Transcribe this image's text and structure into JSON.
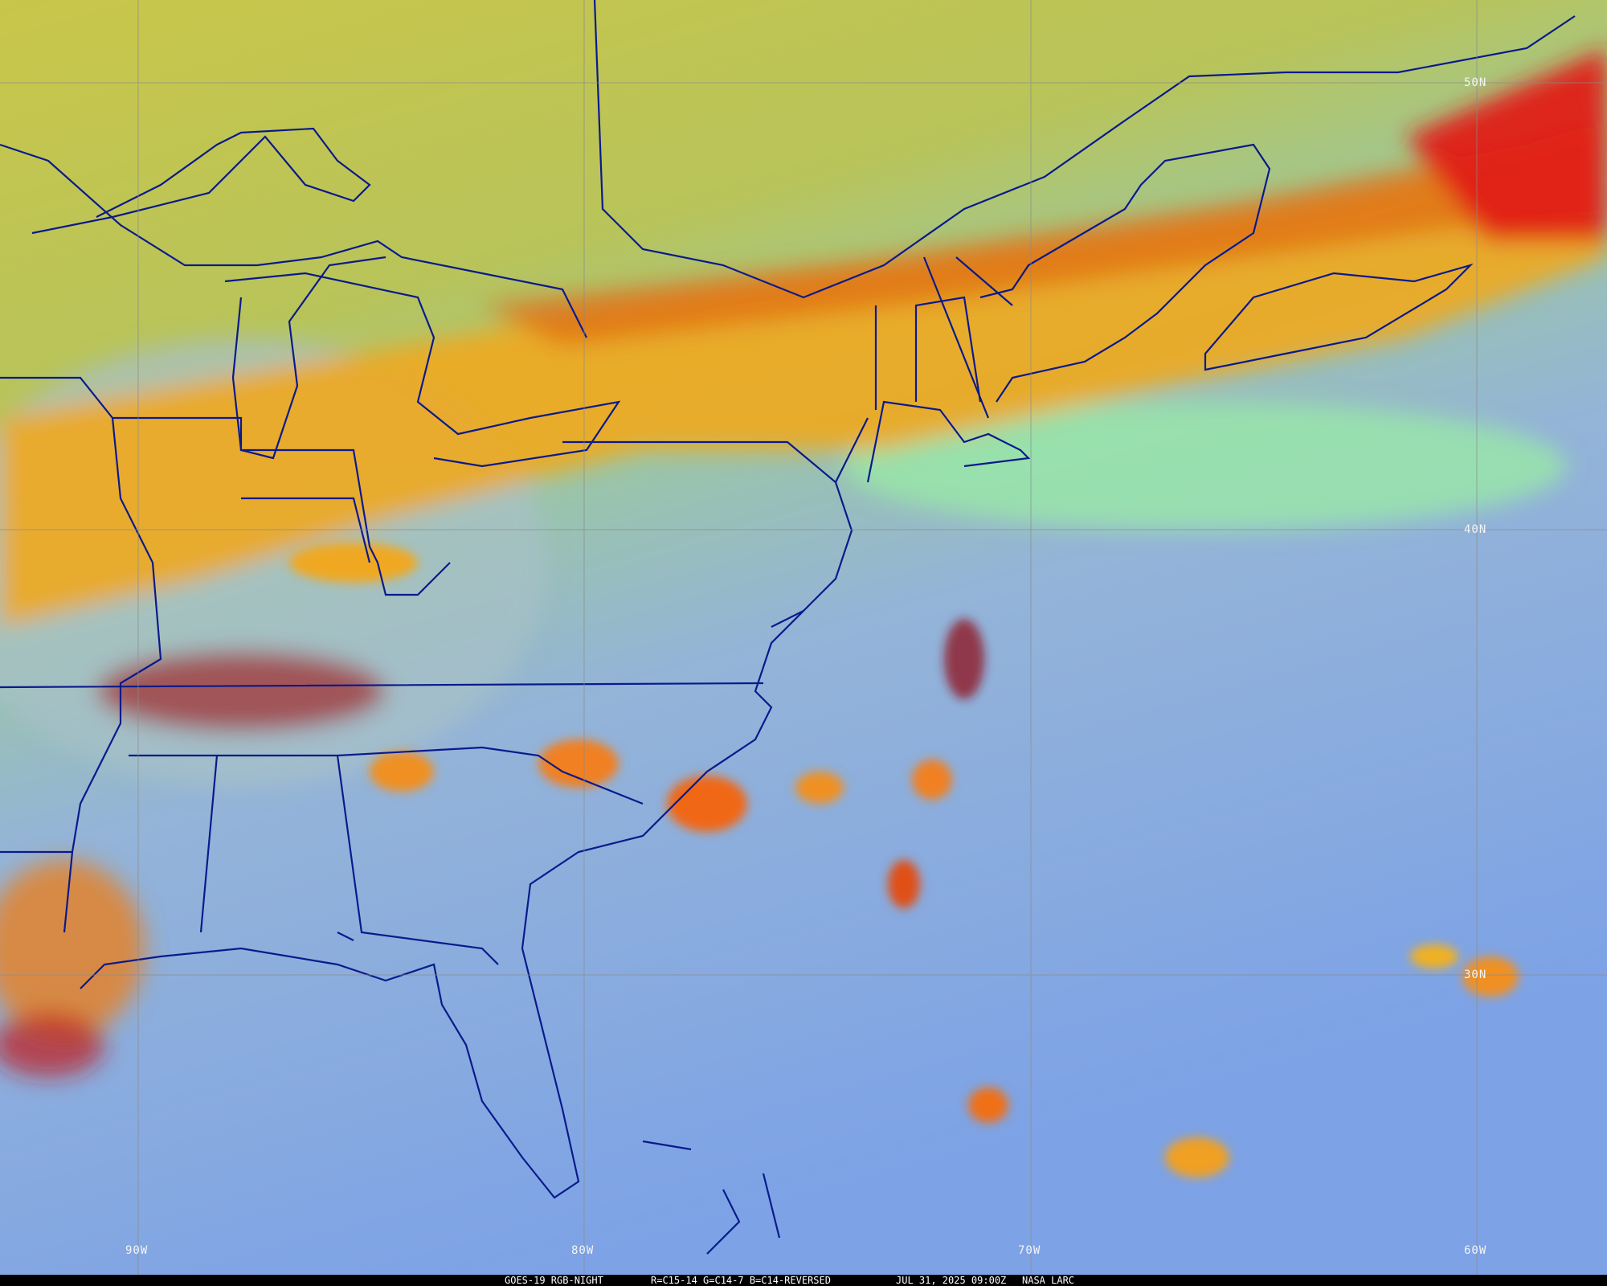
{
  "caption": {
    "satellite": "GOES-19 RGB-NIGHT",
    "channels": "R=C15-14 G=C14-7 B=C14-REVERSED",
    "datetime": "JUL 31, 2025 09:00Z",
    "source": "NASA LARC"
  },
  "graticule": {
    "lat_labels": [
      "50N",
      "40N",
      "30N"
    ],
    "lon_labels": [
      "90W",
      "80W",
      "70W",
      "60W"
    ],
    "line_color": "#8a8a8a",
    "border_color": "#0a1a8c"
  },
  "colors": {
    "land_clear": "#c8c84a",
    "ocean_clear": "#7aa0e0",
    "low_cloud": "#90e0a0",
    "high_cloud_orange": "#f0a020",
    "deep_convection_red": "#d02020"
  }
}
